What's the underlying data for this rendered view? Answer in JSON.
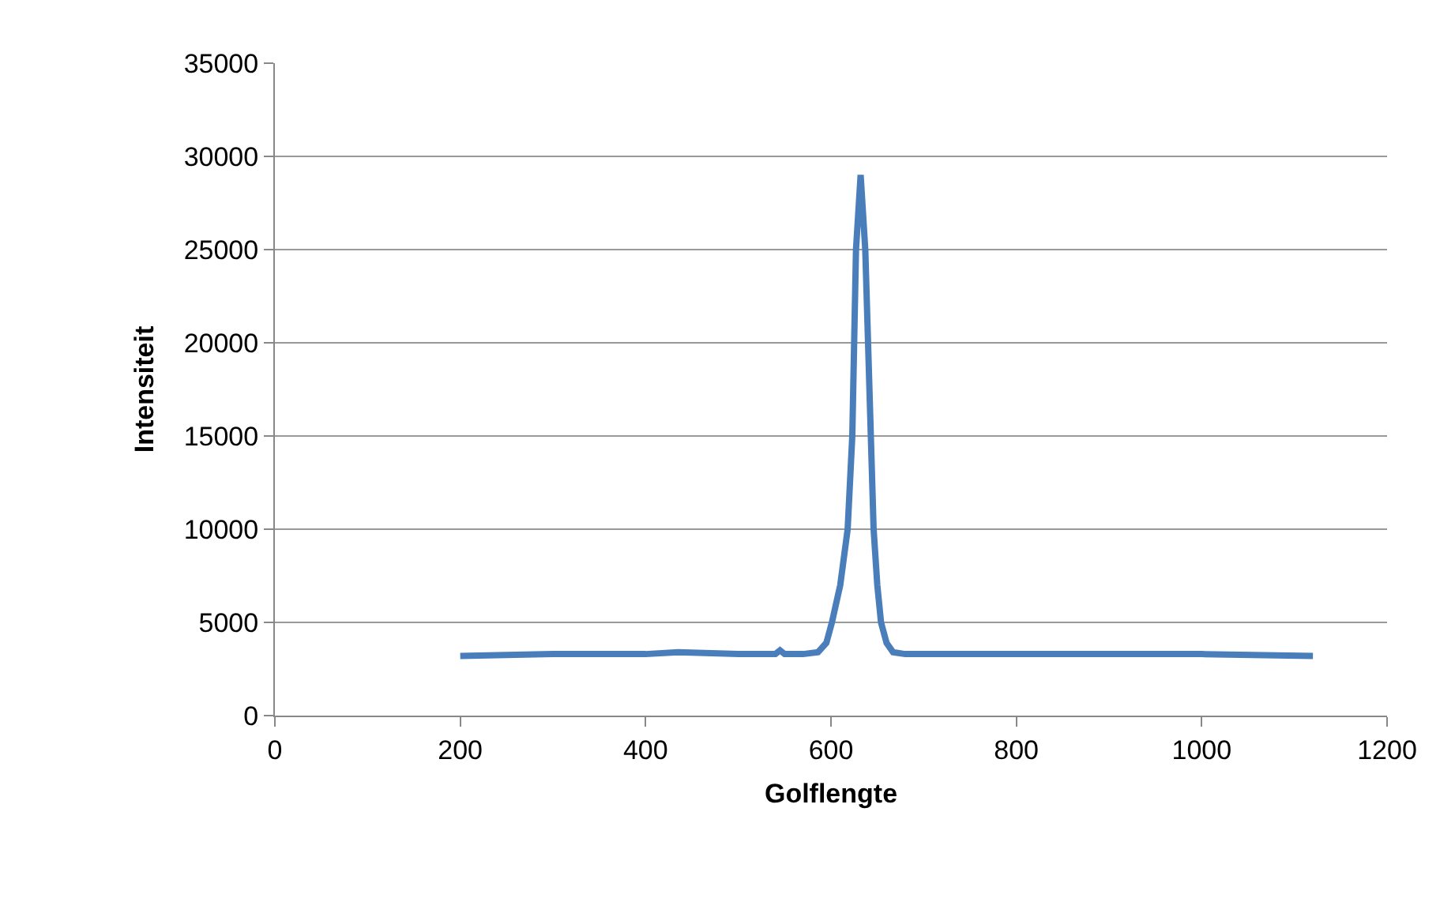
{
  "chart_data": {
    "type": "line",
    "xlabel": "Golflengte",
    "ylabel": "Intensiteit",
    "xlim": [
      0,
      1200
    ],
    "xticks": [
      0,
      200,
      400,
      600,
      800,
      1000,
      1200
    ],
    "ylim": [
      0,
      35000
    ],
    "yticks": [
      0,
      5000,
      10000,
      15000,
      20000,
      25000,
      30000,
      35000
    ],
    "grid": "y",
    "marker": "none",
    "line_style": "solid",
    "series": [
      {
        "color": "#4a7ebb",
        "x": [
          200,
          300,
          400,
          435,
          500,
          540,
          545,
          550,
          570,
          586,
          595,
          601,
          610,
          618,
          623,
          625,
          627,
          632,
          637,
          640,
          643,
          646,
          650,
          654,
          660,
          667,
          680,
          700,
          800,
          870,
          1000,
          1120
        ],
        "values": [
          3200,
          3300,
          3300,
          3400,
          3300,
          3300,
          3500,
          3300,
          3300,
          3400,
          3900,
          5000,
          7000,
          10000,
          15000,
          20000,
          25000,
          29000,
          25000,
          20000,
          15000,
          10000,
          7000,
          5000,
          3900,
          3400,
          3300,
          3300,
          3300,
          3300,
          3300,
          3200
        ]
      }
    ]
  }
}
